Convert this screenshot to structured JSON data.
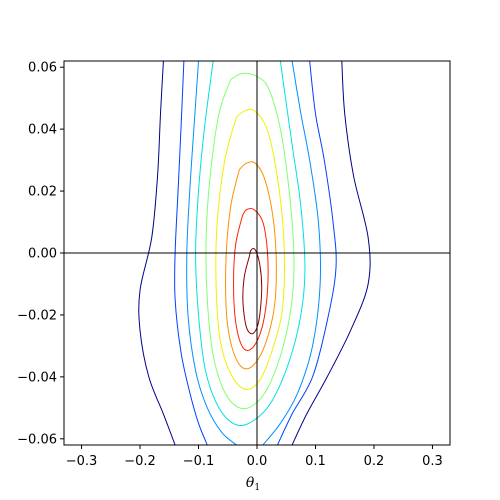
{
  "chart_data": {
    "type": "contour",
    "title": "",
    "xlabel": "θ",
    "xlabel_subscript": "1",
    "ylabel": "",
    "xlim": [
      -0.33,
      0.33
    ],
    "ylim": [
      -0.062,
      0.062
    ],
    "x_ticks": [
      -0.3,
      -0.2,
      -0.1,
      0.0,
      0.1,
      0.2,
      0.3
    ],
    "x_tick_labels": [
      "−0.3",
      "−0.2",
      "−0.1",
      "0.0",
      "0.1",
      "0.2",
      "0.3"
    ],
    "y_ticks": [
      -0.06,
      -0.04,
      -0.02,
      0.0,
      0.02,
      0.04,
      0.06
    ],
    "y_tick_labels": [
      "−0.06",
      "−0.04",
      "−0.02",
      "0.00",
      "0.02",
      "0.04",
      "0.06"
    ],
    "reference_lines": {
      "x": 0.0,
      "y": 0.0
    },
    "colormap": "jet",
    "contours": [
      {
        "color": "#00008b",
        "points": [
          [
            -0.16,
            0.062
          ],
          [
            -0.165,
            0.045
          ],
          [
            -0.17,
            0.025
          ],
          [
            -0.18,
            0.005
          ],
          [
            -0.2,
            -0.012
          ],
          [
            -0.2,
            -0.025
          ],
          [
            -0.185,
            -0.04
          ],
          [
            -0.16,
            -0.052
          ],
          [
            -0.14,
            -0.062
          ]
        ]
      },
      {
        "color": "#00008b",
        "points": [
          [
            0.145,
            0.062
          ],
          [
            0.15,
            0.045
          ],
          [
            0.165,
            0.025
          ],
          [
            0.19,
            0.005
          ],
          [
            0.19,
            -0.01
          ],
          [
            0.16,
            -0.025
          ],
          [
            0.12,
            -0.04
          ],
          [
            0.085,
            -0.052
          ],
          [
            0.06,
            -0.062
          ]
        ]
      },
      {
        "color": "#0040ff",
        "points": [
          [
            -0.125,
            0.062
          ],
          [
            -0.13,
            0.04
          ],
          [
            -0.135,
            0.02
          ],
          [
            -0.14,
            0.0
          ],
          [
            -0.14,
            -0.015
          ],
          [
            -0.13,
            -0.032
          ],
          [
            -0.115,
            -0.045
          ],
          [
            -0.1,
            -0.055
          ],
          [
            -0.085,
            -0.062
          ]
        ]
      },
      {
        "color": "#0040ff",
        "points": [
          [
            0.09,
            0.062
          ],
          [
            0.1,
            0.045
          ],
          [
            0.115,
            0.03
          ],
          [
            0.13,
            0.01
          ],
          [
            0.135,
            -0.005
          ],
          [
            0.12,
            -0.022
          ],
          [
            0.095,
            -0.04
          ],
          [
            0.06,
            -0.052
          ],
          [
            0.035,
            -0.062
          ]
        ]
      },
      {
        "color": "#0090ff",
        "points": [
          [
            -0.1,
            0.062
          ],
          [
            -0.108,
            0.04
          ],
          [
            -0.115,
            0.02
          ],
          [
            -0.12,
            0.0
          ],
          [
            -0.118,
            -0.02
          ],
          [
            -0.105,
            -0.038
          ],
          [
            -0.085,
            -0.05
          ],
          [
            -0.06,
            -0.058
          ],
          [
            -0.035,
            -0.062
          ]
        ]
      },
      {
        "color": "#0090ff",
        "points": [
          [
            0.06,
            0.062
          ],
          [
            0.075,
            0.045
          ],
          [
            0.09,
            0.03
          ],
          [
            0.105,
            0.01
          ],
          [
            0.108,
            -0.01
          ],
          [
            0.095,
            -0.03
          ],
          [
            0.07,
            -0.045
          ],
          [
            0.04,
            -0.055
          ],
          [
            0.01,
            -0.062
          ]
        ]
      },
      {
        "color": "#00e0e0",
        "points": [
          [
            -0.075,
            0.062
          ],
          [
            -0.09,
            0.04
          ],
          [
            -0.1,
            0.02
          ],
          [
            -0.105,
            0.0
          ],
          [
            -0.1,
            -0.02
          ],
          [
            -0.088,
            -0.038
          ],
          [
            -0.065,
            -0.05
          ],
          [
            -0.035,
            -0.0555
          ],
          [
            -0.005,
            -0.054
          ],
          [
            0.025,
            -0.048
          ],
          [
            0.055,
            -0.035
          ],
          [
            0.075,
            -0.02
          ],
          [
            0.082,
            -0.005
          ],
          [
            0.075,
            0.015
          ],
          [
            0.06,
            0.035
          ],
          [
            0.045,
            0.055
          ],
          [
            0.04,
            0.062
          ]
        ]
      },
      {
        "color": "#80ff70",
        "points": [
          [
            -0.045,
            0.056
          ],
          [
            -0.065,
            0.045
          ],
          [
            -0.08,
            0.025
          ],
          [
            -0.087,
            0.005
          ],
          [
            -0.085,
            -0.015
          ],
          [
            -0.075,
            -0.033
          ],
          [
            -0.055,
            -0.045
          ],
          [
            -0.03,
            -0.05
          ],
          [
            -0.005,
            -0.049
          ],
          [
            0.02,
            -0.043
          ],
          [
            0.045,
            -0.03
          ],
          [
            0.06,
            -0.015
          ],
          [
            0.063,
            0.0
          ],
          [
            0.055,
            0.02
          ],
          [
            0.04,
            0.04
          ],
          [
            0.02,
            0.053
          ],
          [
            0.0,
            0.057
          ],
          [
            -0.025,
            0.058
          ],
          [
            -0.045,
            0.056
          ]
        ]
      },
      {
        "color": "#f0f000",
        "points": [
          [
            -0.035,
            0.044
          ],
          [
            -0.055,
            0.03
          ],
          [
            -0.068,
            0.01
          ],
          [
            -0.07,
            -0.01
          ],
          [
            -0.063,
            -0.028
          ],
          [
            -0.045,
            -0.039
          ],
          [
            -0.02,
            -0.044
          ],
          [
            0.005,
            -0.041
          ],
          [
            0.025,
            -0.032
          ],
          [
            0.042,
            -0.02
          ],
          [
            0.047,
            -0.005
          ],
          [
            0.043,
            0.012
          ],
          [
            0.03,
            0.03
          ],
          [
            0.015,
            0.041
          ],
          [
            -0.005,
            0.046
          ],
          [
            -0.02,
            0.046
          ],
          [
            -0.035,
            0.044
          ]
        ]
      },
      {
        "color": "#ff9000",
        "points": [
          [
            -0.03,
            0.027
          ],
          [
            -0.045,
            0.015
          ],
          [
            -0.053,
            -0.002
          ],
          [
            -0.052,
            -0.02
          ],
          [
            -0.042,
            -0.031
          ],
          [
            -0.025,
            -0.037
          ],
          [
            -0.005,
            -0.036
          ],
          [
            0.015,
            -0.029
          ],
          [
            0.03,
            -0.017
          ],
          [
            0.033,
            -0.003
          ],
          [
            0.027,
            0.012
          ],
          [
            0.013,
            0.024
          ],
          [
            -0.003,
            0.029
          ],
          [
            -0.018,
            0.029
          ],
          [
            -0.03,
            0.027
          ]
        ]
      },
      {
        "color": "#ff2000",
        "points": [
          [
            -0.025,
            0.012
          ],
          [
            -0.037,
            0.002
          ],
          [
            -0.04,
            -0.012
          ],
          [
            -0.035,
            -0.024
          ],
          [
            -0.022,
            -0.031
          ],
          [
            -0.005,
            -0.03
          ],
          [
            0.01,
            -0.023
          ],
          [
            0.018,
            -0.012
          ],
          [
            0.018,
            0.0
          ],
          [
            0.01,
            0.01
          ],
          [
            -0.005,
            0.014
          ],
          [
            -0.018,
            0.014
          ],
          [
            -0.025,
            0.012
          ]
        ]
      },
      {
        "color": "#8b0000",
        "points": [
          [
            -0.013,
            -0.001
          ],
          [
            -0.022,
            -0.008
          ],
          [
            -0.024,
            -0.016
          ],
          [
            -0.018,
            -0.024
          ],
          [
            -0.007,
            -0.026
          ],
          [
            0.003,
            -0.022
          ],
          [
            0.008,
            -0.012
          ],
          [
            0.005,
            -0.004
          ],
          [
            -0.003,
            0.001
          ],
          [
            -0.01,
            0.001
          ],
          [
            -0.013,
            -0.001
          ]
        ]
      }
    ]
  }
}
